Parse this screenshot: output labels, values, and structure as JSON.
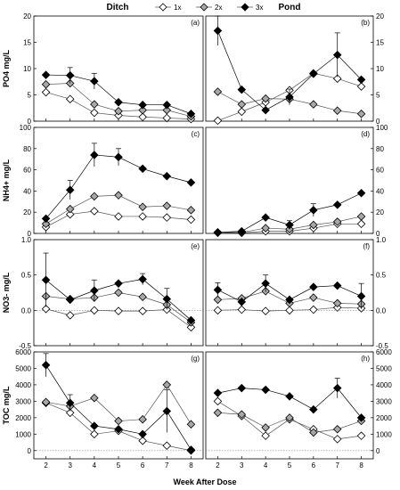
{
  "headers": {
    "left": "Ditch",
    "right": "Pond"
  },
  "xlabel": "Week After Dose",
  "legend": [
    {
      "name": "1x",
      "color": "#ffffff"
    },
    {
      "name": "2x",
      "color": "#a8a8a8"
    },
    {
      "name": "3x",
      "color": "#000000"
    }
  ],
  "chart_data": [
    {
      "type": "line",
      "panel": "(a)",
      "ylabel": "PO4 mg/L",
      "ylim": [
        0,
        20
      ],
      "yticks": [
        0,
        5,
        10,
        15,
        20
      ],
      "x": [
        2,
        3,
        4,
        5,
        6,
        7,
        8
      ],
      "series": [
        {
          "name": "1x",
          "values": [
            5.5,
            4.2,
            1.6,
            1.1,
            0.8,
            0.6,
            0.4
          ]
        },
        {
          "name": "2x",
          "values": [
            7.0,
            7.2,
            3.2,
            1.9,
            2.1,
            2.1,
            0.9
          ]
        },
        {
          "name": "3x",
          "values": [
            8.8,
            8.7,
            7.6,
            3.6,
            3.1,
            3.1,
            1.4
          ],
          "err": [
            0,
            1.5,
            1.5,
            0,
            0,
            0,
            0
          ]
        }
      ]
    },
    {
      "type": "line",
      "panel": "(b)",
      "ylabel": "",
      "ylim": [
        0,
        20
      ],
      "yticks": [
        0,
        5,
        10,
        15,
        20
      ],
      "x": [
        2,
        3,
        4,
        5,
        6,
        7,
        8
      ],
      "series": [
        {
          "name": "1x",
          "values": [
            0.1,
            1.8,
            3.6,
            5.9,
            9.1,
            8.1,
            6.6
          ]
        },
        {
          "name": "2x",
          "values": [
            5.6,
            3.2,
            4.3,
            4.2,
            3.2,
            2.0,
            1.4
          ]
        },
        {
          "name": "3x",
          "values": [
            17.2,
            6.0,
            2.1,
            4.6,
            9.0,
            12.6,
            7.9
          ],
          "err": [
            2.8,
            0,
            0,
            1.5,
            0,
            4.2,
            0
          ]
        }
      ]
    },
    {
      "type": "line",
      "panel": "(c)",
      "ylabel": "NH4+ mg/L",
      "ylim": [
        0,
        100
      ],
      "yticks": [
        0,
        20,
        40,
        60,
        80,
        100
      ],
      "x": [
        2,
        3,
        4,
        5,
        6,
        7,
        8
      ],
      "series": [
        {
          "name": "1x",
          "values": [
            6,
            18,
            21,
            16,
            16,
            15,
            13
          ]
        },
        {
          "name": "2x",
          "values": [
            9,
            23,
            35,
            36,
            25,
            26,
            22
          ]
        },
        {
          "name": "3x",
          "values": [
            14,
            41,
            74,
            72,
            61,
            54,
            48
          ],
          "err": [
            0,
            9,
            11,
            8,
            0,
            0,
            0
          ]
        }
      ]
    },
    {
      "type": "line",
      "panel": "(d)",
      "ylabel": "",
      "ylim": [
        0,
        100
      ],
      "yticks": [
        0,
        20,
        40,
        60,
        80,
        100
      ],
      "x": [
        2,
        3,
        4,
        5,
        6,
        7,
        8
      ],
      "series": [
        {
          "name": "1x",
          "values": [
            1,
            0.5,
            2,
            2,
            5,
            9,
            9
          ]
        },
        {
          "name": "2x",
          "values": [
            0.5,
            1,
            5,
            4,
            8,
            11,
            16
          ]
        },
        {
          "name": "3x",
          "values": [
            1,
            2,
            15,
            8,
            22,
            27,
            38
          ],
          "err": [
            0,
            0,
            0,
            4,
            6,
            0,
            0
          ]
        }
      ]
    },
    {
      "type": "line",
      "panel": "(e)",
      "ylabel": "NO3- mg/L",
      "ylim": [
        -0.5,
        1.0
      ],
      "yticks": [
        -0.5,
        0.0,
        0.5,
        1.0
      ],
      "x": [
        2,
        3,
        4,
        5,
        6,
        7,
        8
      ],
      "series": [
        {
          "name": "1x",
          "values": [
            0.02,
            -0.07,
            0.0,
            -0.01,
            -0.01,
            0.01,
            -0.24
          ]
        },
        {
          "name": "2x",
          "values": [
            0.2,
            0.16,
            0.18,
            0.25,
            0.19,
            0.08,
            -0.17
          ]
        },
        {
          "name": "3x",
          "values": [
            0.43,
            0.15,
            0.28,
            0.38,
            0.44,
            0.16,
            -0.14
          ],
          "err": [
            0.38,
            0,
            0.15,
            0,
            0.08,
            0.15,
            0
          ]
        }
      ]
    },
    {
      "type": "line",
      "panel": "(f)",
      "ylabel": "",
      "ylim": [
        -0.5,
        1.0
      ],
      "yticks": [
        -0.5,
        0.0,
        0.5,
        1.0
      ],
      "x": [
        2,
        3,
        4,
        5,
        6,
        7,
        8
      ],
      "series": [
        {
          "name": "1x",
          "values": [
            0.0,
            0.01,
            -0.01,
            0.0,
            0.01,
            0.04,
            0.03
          ]
        },
        {
          "name": "2x",
          "values": [
            0.15,
            0.17,
            0.27,
            0.1,
            0.18,
            0.1,
            0.09
          ]
        },
        {
          "name": "3x",
          "values": [
            0.29,
            0.12,
            0.38,
            0.15,
            0.33,
            0.35,
            0.2
          ],
          "err": [
            0.1,
            0,
            0.12,
            0,
            0,
            0,
            0.18
          ]
        }
      ]
    },
    {
      "type": "line",
      "panel": "(g)",
      "ylabel": "TOC mg/L",
      "ylim": [
        -500,
        6000
      ],
      "yticks": [
        0,
        1000,
        2000,
        3000,
        4000,
        5000,
        6000
      ],
      "x": [
        2,
        3,
        4,
        5,
        6,
        7,
        8
      ],
      "series": [
        {
          "name": "1x",
          "values": [
            2900,
            2300,
            1000,
            1200,
            600,
            300,
            0
          ]
        },
        {
          "name": "2x",
          "values": [
            2950,
            2700,
            3200,
            1800,
            1900,
            4000,
            1600
          ]
        },
        {
          "name": "3x",
          "values": [
            5200,
            2900,
            1500,
            1300,
            1000,
            2400,
            50
          ],
          "err": [
            700,
            500,
            0,
            0,
            0,
            1300,
            0
          ]
        }
      ]
    },
    {
      "type": "line",
      "panel": "(h)",
      "ylabel": "",
      "ylim": [
        -500,
        6000
      ],
      "yticks": [
        0,
        1000,
        2000,
        3000,
        4000,
        5000,
        6000
      ],
      "x": [
        2,
        3,
        4,
        5,
        6,
        7,
        8
      ],
      "series": [
        {
          "name": "1x",
          "values": [
            3000,
            2100,
            900,
            1900,
            1300,
            700,
            900
          ]
        },
        {
          "name": "2x",
          "values": [
            2300,
            2200,
            1400,
            2000,
            1100,
            1300,
            1800
          ]
        },
        {
          "name": "3x",
          "values": [
            3500,
            3800,
            3700,
            3300,
            2500,
            3800,
            2000
          ],
          "err": [
            0,
            0,
            0,
            0,
            0,
            600,
            0
          ]
        }
      ]
    }
  ]
}
